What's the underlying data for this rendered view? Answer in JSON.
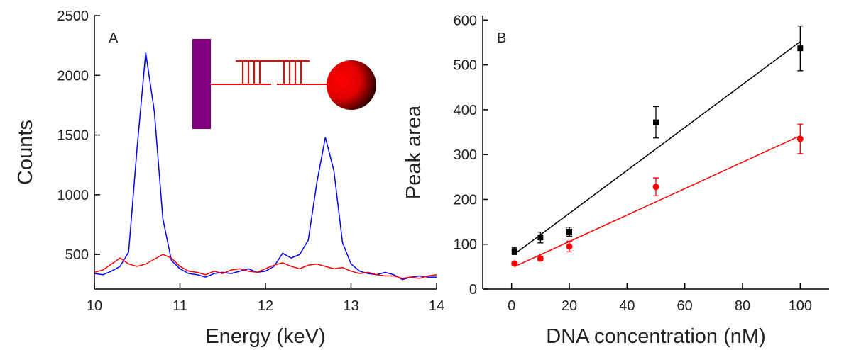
{
  "chart_data": [
    {
      "type": "line",
      "panel_label": "A",
      "xlabel": "Energy (keV)",
      "ylabel": "Counts",
      "x": [
        10.0,
        10.1,
        10.2,
        10.3,
        10.4,
        10.5,
        10.6,
        10.7,
        10.8,
        10.9,
        11.0,
        11.1,
        11.2,
        11.3,
        11.4,
        11.5,
        11.6,
        11.7,
        11.8,
        11.9,
        12.0,
        12.1,
        12.2,
        12.3,
        12.4,
        12.5,
        12.6,
        12.7,
        12.8,
        12.9,
        13.0,
        13.1,
        13.2,
        13.3,
        13.4,
        13.5,
        13.6,
        13.7,
        13.8,
        13.9,
        14.0
      ],
      "series": [
        {
          "color": "#0000ff",
          "values": [
            340,
            330,
            360,
            400,
            520,
            1400,
            2190,
            1700,
            800,
            450,
            380,
            340,
            330,
            310,
            340,
            350,
            340,
            360,
            380,
            350,
            360,
            400,
            510,
            470,
            500,
            620,
            1100,
            1480,
            1200,
            600,
            420,
            360,
            340,
            330,
            350,
            330,
            290,
            310,
            320,
            310,
            310
          ]
        },
        {
          "color": "#ff0000",
          "values": [
            350,
            370,
            420,
            470,
            420,
            400,
            420,
            460,
            500,
            470,
            400,
            360,
            350,
            330,
            360,
            340,
            370,
            380,
            360,
            350,
            380,
            410,
            430,
            400,
            380,
            410,
            420,
            400,
            380,
            390,
            360,
            340,
            350,
            330,
            320,
            320,
            300,
            310,
            300,
            320,
            330
          ]
        }
      ],
      "xlim": [
        10,
        14
      ],
      "xticks": [
        10,
        11,
        12,
        13,
        14
      ],
      "ylim": [
        210,
        2500
      ],
      "yticks": [
        500,
        1000,
        1500,
        2000,
        2500
      ]
    },
    {
      "type": "scatter",
      "panel_label": "B",
      "xlabel": "DNA concentration (nM)",
      "ylabel": "Peak area",
      "x": [
        1,
        10,
        20,
        50,
        100
      ],
      "series": [
        {
          "color": "#000000",
          "marker": "square",
          "values": [
            85,
            115,
            128,
            372,
            537
          ],
          "errors": [
            8,
            12,
            10,
            35,
            50
          ],
          "fit": {
            "x": [
              1,
              100
            ],
            "values": [
              78,
              552
            ]
          }
        },
        {
          "color": "#ff0000",
          "marker": "circle",
          "values": [
            57,
            68,
            95,
            228,
            335
          ],
          "errors": [
            5,
            5,
            12,
            20,
            33
          ],
          "fit": {
            "x": [
              1,
              100
            ],
            "values": [
              50,
              342
            ]
          }
        }
      ],
      "xlim": [
        -10,
        110
      ],
      "xticks": [
        0,
        20,
        40,
        60,
        80,
        100
      ],
      "ylim": [
        0,
        610
      ],
      "yticks": [
        0,
        100,
        200,
        300,
        400,
        500,
        600
      ]
    }
  ]
}
